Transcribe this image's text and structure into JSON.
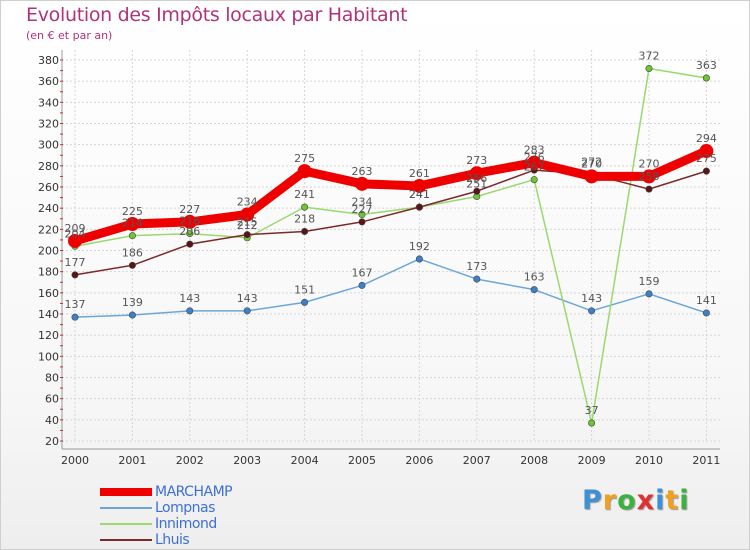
{
  "header": {
    "title": "Evolution des Impôts locaux par Habitant",
    "subtitle": "(en € et par an)"
  },
  "colors": {
    "title": "#b0337a",
    "legend_text": "#3d6fd6",
    "grid": "#d6d6d6",
    "axis_text": "#333333",
    "label_text": "#555555"
  },
  "logo": {
    "text": "Proxiti",
    "letter_colors": [
      "#3d8fd6",
      "#f0a020",
      "#3db040",
      "#e03030",
      "#3d8fd6",
      "#f0a020",
      "#3db040"
    ]
  },
  "chart_data": {
    "type": "line",
    "title": "Evolution des Impôts locaux par Habitant",
    "ylabel": "(en € et par an)",
    "xlabel": "",
    "ylim": [
      20,
      380
    ],
    "ytick_step": 20,
    "yticks": [
      "20",
      "40",
      "60",
      "80",
      "100",
      "120",
      "140",
      "160",
      "180",
      "200",
      "220",
      "240",
      "260",
      "280",
      "300",
      "320",
      "340",
      "360",
      "380"
    ],
    "categories": [
      "2000",
      "2001",
      "2002",
      "2003",
      "2004",
      "2005",
      "2006",
      "2007",
      "2008",
      "2009",
      "2010",
      "2011"
    ],
    "grid": true,
    "legend_position": "bottom-left",
    "series": [
      {
        "name": "MARCHAMP",
        "color": "#ee0000",
        "marker": "#ee0000",
        "thick": true,
        "values": [
          209,
          225,
          227,
          234,
          275,
          263,
          261,
          273,
          283,
          270,
          270,
          294
        ]
      },
      {
        "name": "Lompnas",
        "color": "#6ca6d8",
        "marker": "#3d7fc8",
        "thick": false,
        "values": [
          137,
          139,
          143,
          143,
          151,
          167,
          192,
          173,
          163,
          143,
          159,
          141
        ]
      },
      {
        "name": "Innimond",
        "color": "#9ad870",
        "marker": "#6cc830",
        "thick": false,
        "values": [
          204,
          214,
          216,
          212,
          241,
          234,
          241,
          251,
          267,
          37,
          372,
          363
        ]
      },
      {
        "name": "Lhuis",
        "color": "#7a2a2a",
        "marker": "#5a1414",
        "thick": false,
        "values": [
          177,
          186,
          206,
          215,
          218,
          227,
          241,
          256,
          276,
          272,
          258,
          275
        ]
      }
    ]
  }
}
